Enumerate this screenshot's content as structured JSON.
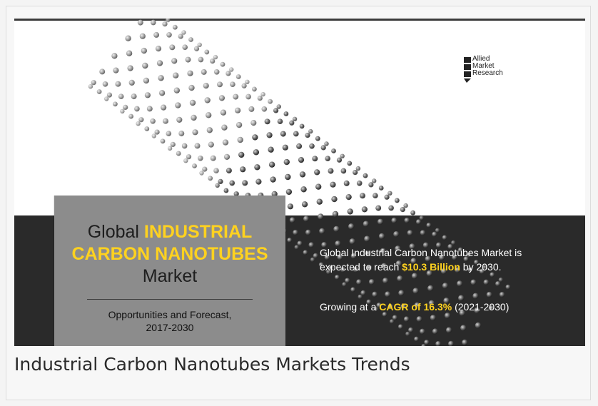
{
  "banner": {
    "logo_lines": [
      "Allied",
      "Market",
      "Research"
    ],
    "title_prefix": "Global",
    "title_hl1": "INDUSTRIAL",
    "title_hl2": "CARBON NANOTUBES",
    "title_suffix": "Market",
    "subtitle_line1": "Opportunities and Forecast,",
    "subtitle_line2": "2017-2030",
    "stat1_line1": "Global Industrial Carbon Nanotubes Market is",
    "stat1_pre": "expected to reach ",
    "stat1_value": "$10.3 Billion",
    "stat1_post": " by 2030.",
    "stat2_pre": "Growing at a ",
    "stat2_value": "CAGR of 16.3%",
    "stat2_post": " (2021-2030)"
  },
  "caption": "Industrial Carbon Nanotubes Markets Trends",
  "colors": {
    "highlight": "#ffd21f",
    "dark_band": "#2a2a2a",
    "gray_box": "#8c8c8c"
  }
}
